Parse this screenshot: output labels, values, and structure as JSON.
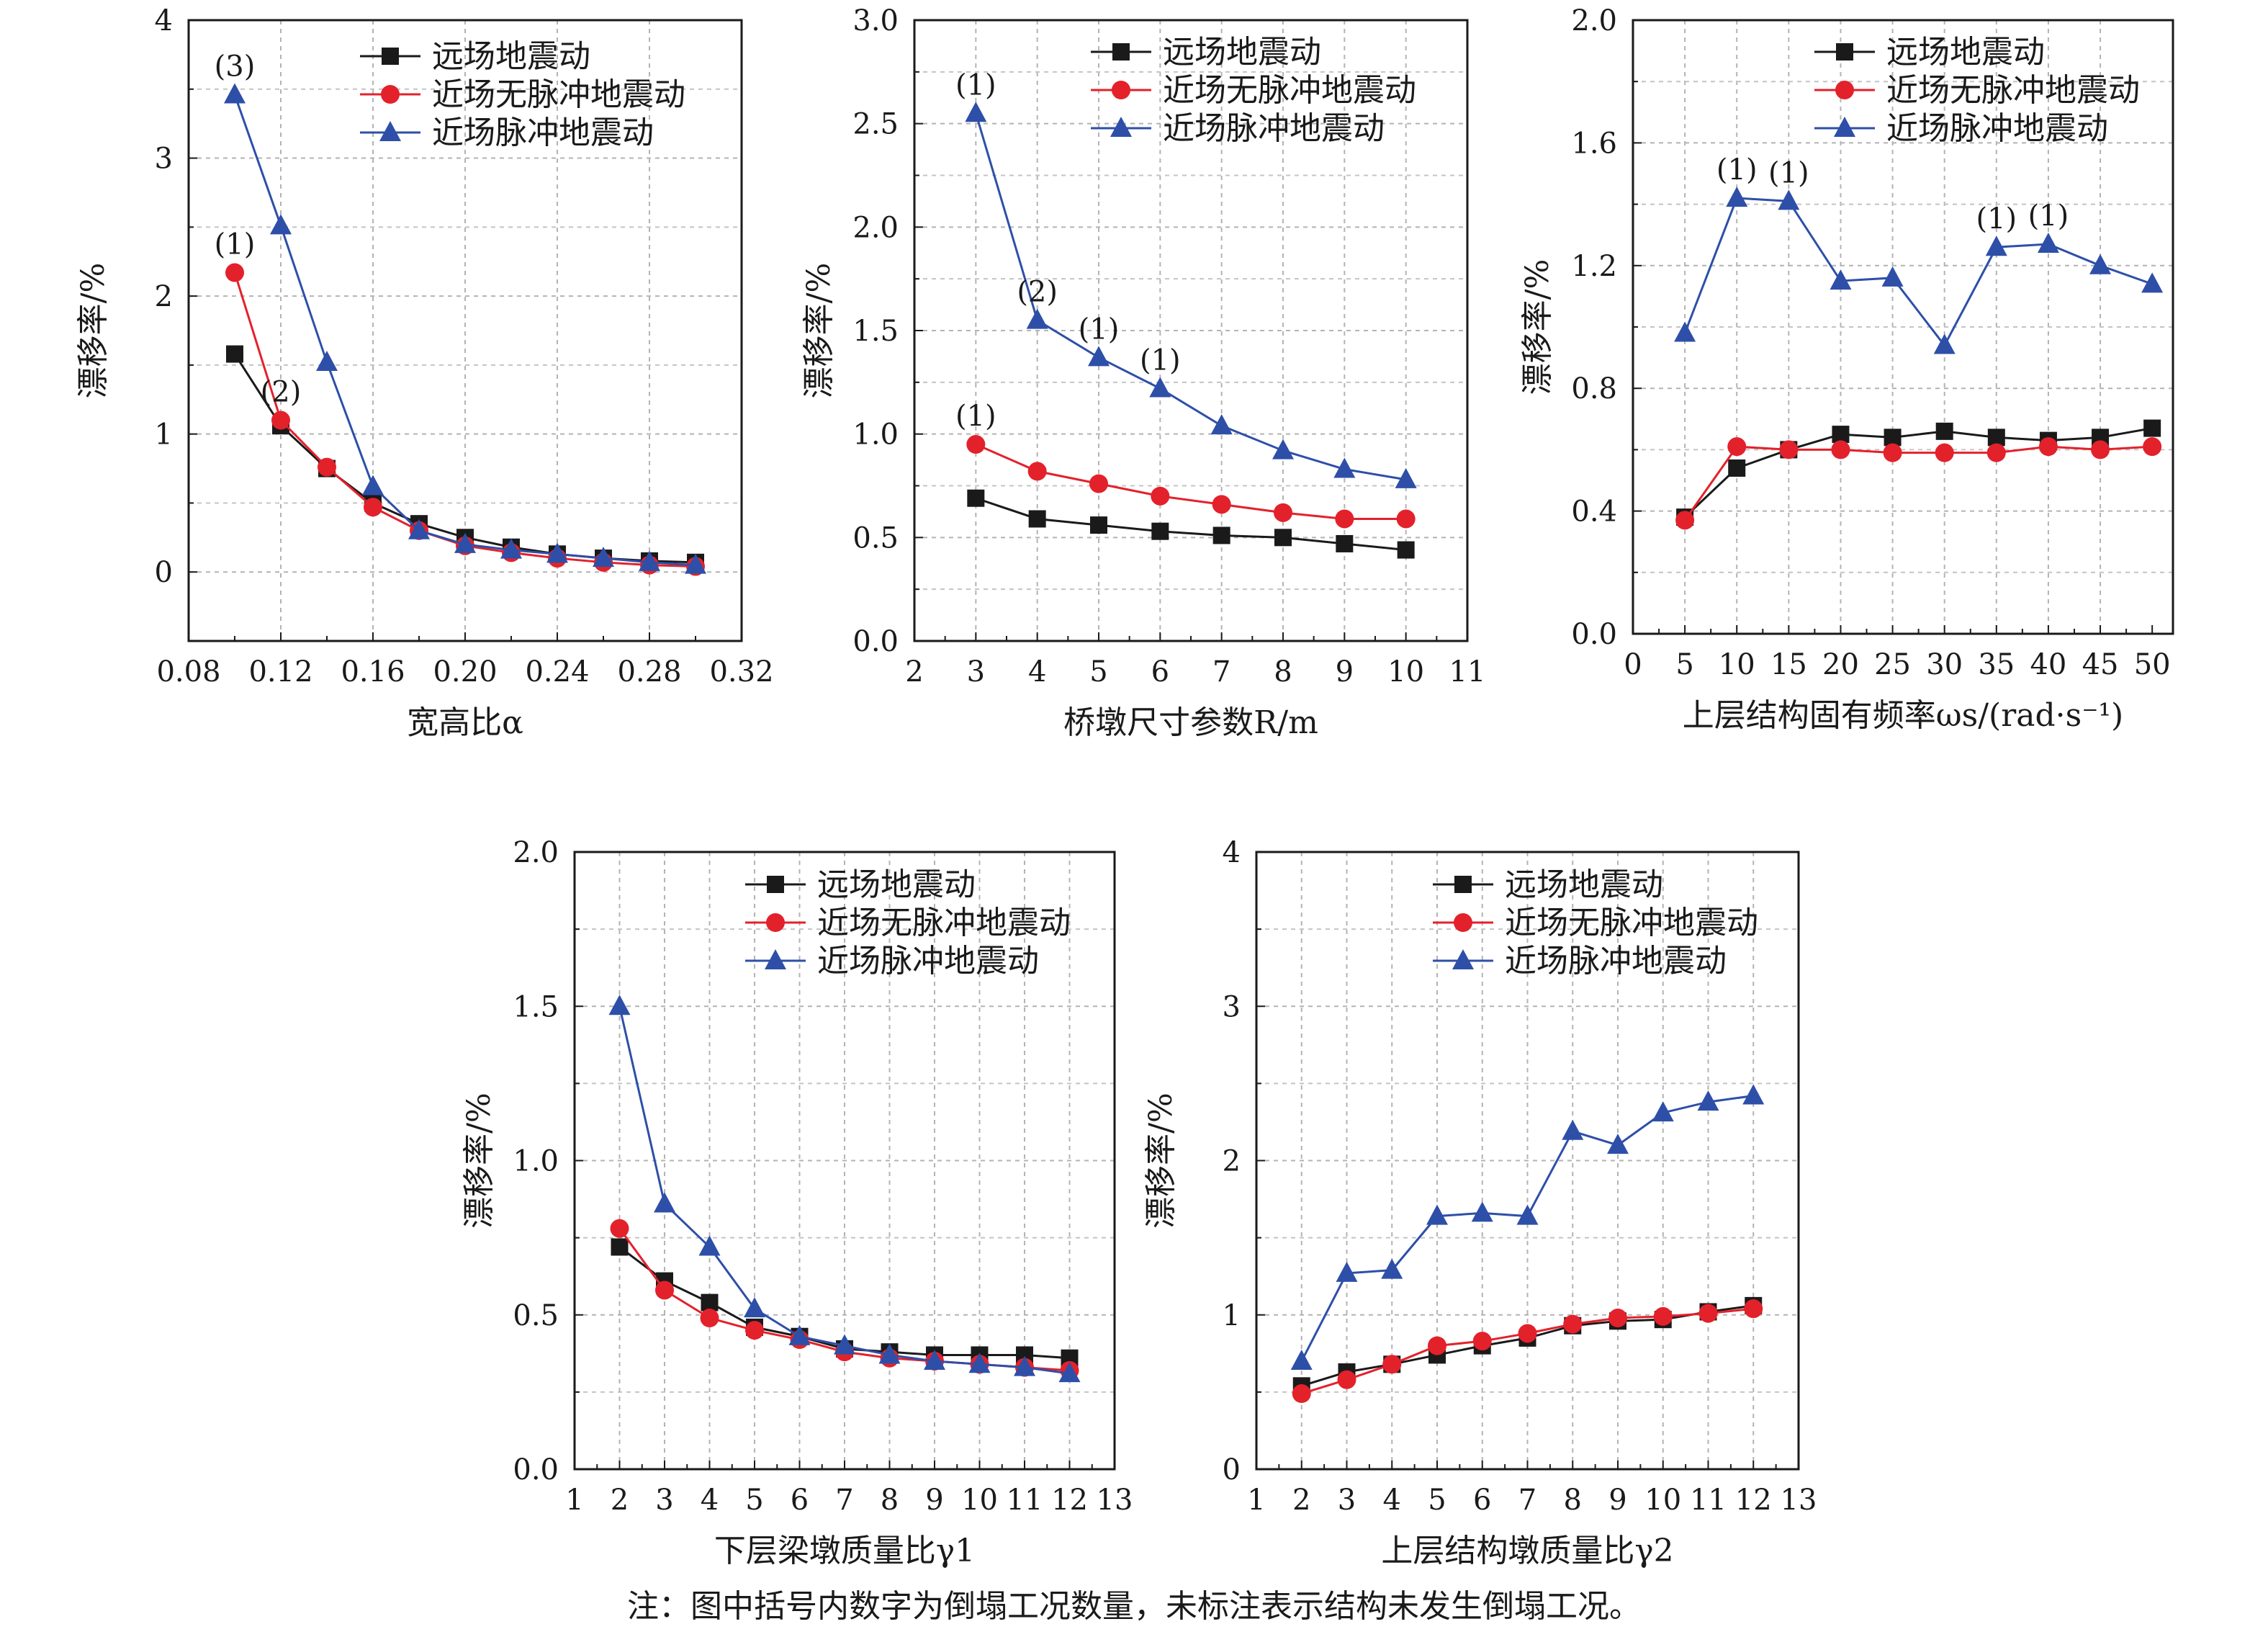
{
  "figure": {
    "note": "注：图中括号内数字为倒塌工况数量，未标注表示结构未发生倒塌工况。",
    "series_styles": [
      {
        "color": "#1a1a1a",
        "marker": "square"
      },
      {
        "color": "#e3212b",
        "marker": "circle"
      },
      {
        "color": "#2e4fa8",
        "marker": "triangle"
      }
    ]
  },
  "chart_data": [
    {
      "type": "line",
      "xlabel": "宽高比α",
      "ylabel": "漂移率/%",
      "xlim": [
        0.08,
        0.32
      ],
      "ylim": [
        -0.5,
        4
      ],
      "xticks": [
        "0.08",
        "0.12",
        "0.16",
        "0.20",
        "0.24",
        "0.28",
        "0.32"
      ],
      "yticks": [
        "0",
        "1",
        "2",
        "3",
        "4"
      ],
      "legend": "top-right",
      "grid": true,
      "x": [
        0.1,
        0.12,
        0.14,
        0.16,
        0.18,
        0.2,
        0.22,
        0.24,
        0.26,
        0.28,
        0.3
      ],
      "series": [
        {
          "name": "远场地震动",
          "values": [
            1.58,
            1.06,
            0.75,
            0.5,
            0.35,
            0.25,
            0.18,
            0.13,
            0.1,
            0.08,
            0.07
          ]
        },
        {
          "name": "近场无脉冲地震动",
          "values": [
            2.17,
            1.1,
            0.76,
            0.47,
            0.3,
            0.19,
            0.14,
            0.1,
            0.07,
            0.05,
            0.04
          ]
        },
        {
          "name": "近场脉冲地震动",
          "values": [
            3.46,
            2.51,
            1.52,
            0.62,
            0.3,
            0.2,
            0.16,
            0.13,
            0.1,
            0.07,
            0.05
          ]
        }
      ],
      "annotations": [
        {
          "text": "(3)",
          "x": 0.1,
          "y": 3.46
        },
        {
          "text": "(1)",
          "x": 0.1,
          "y": 2.17
        },
        {
          "text": "(2)",
          "x": 0.12,
          "y": 1.1
        }
      ]
    },
    {
      "type": "line",
      "xlabel": "桥墩尺寸参数R/m",
      "ylabel": "漂移率/%",
      "xlim": [
        2,
        11
      ],
      "ylim": [
        0,
        3
      ],
      "xticks": [
        "2",
        "3",
        "4",
        "5",
        "6",
        "7",
        "8",
        "9",
        "10",
        "11"
      ],
      "yticks": [
        "0.0",
        "0.5",
        "1.0",
        "1.5",
        "2.0",
        "2.5",
        "3.0"
      ],
      "legend": "top-right",
      "grid": true,
      "x": [
        3,
        4,
        5,
        6,
        7,
        8,
        9,
        10
      ],
      "series": [
        {
          "name": "远场地震动",
          "values": [
            0.69,
            0.59,
            0.56,
            0.53,
            0.51,
            0.5,
            0.47,
            0.44
          ]
        },
        {
          "name": "近场无脉冲地震动",
          "values": [
            0.95,
            0.82,
            0.76,
            0.7,
            0.66,
            0.62,
            0.59,
            0.59
          ]
        },
        {
          "name": "近场脉冲地震动",
          "values": [
            2.55,
            1.55,
            1.37,
            1.22,
            1.04,
            0.92,
            0.83,
            0.78
          ]
        }
      ],
      "annotations": [
        {
          "text": "(1)",
          "x": 3,
          "y": 2.55
        },
        {
          "text": "(2)",
          "x": 4,
          "y": 1.55
        },
        {
          "text": "(1)",
          "x": 5,
          "y": 1.37
        },
        {
          "text": "(1)",
          "x": 6,
          "y": 1.22
        },
        {
          "text": "(1)",
          "x": 3,
          "y": 0.95
        }
      ]
    },
    {
      "type": "line",
      "xlabel": "上层结构固有频率ωs/(rad·s⁻¹)",
      "ylabel": "漂移率/%",
      "xlim": [
        0,
        52
      ],
      "ylim": [
        0,
        2
      ],
      "xticks": [
        "0",
        "5",
        "10",
        "15",
        "20",
        "25",
        "30",
        "35",
        "40",
        "45",
        "50"
      ],
      "yticks": [
        "0.0",
        "0.4",
        "0.8",
        "1.2",
        "1.6",
        "2.0"
      ],
      "legend": "top-right",
      "grid": true,
      "x": [
        5,
        10,
        15,
        20,
        25,
        30,
        35,
        40,
        45,
        50
      ],
      "series": [
        {
          "name": "远场地震动",
          "values": [
            0.38,
            0.54,
            0.6,
            0.65,
            0.64,
            0.66,
            0.64,
            0.63,
            0.64,
            0.67
          ]
        },
        {
          "name": "近场无脉冲地震动",
          "values": [
            0.37,
            0.61,
            0.6,
            0.6,
            0.59,
            0.59,
            0.59,
            0.61,
            0.6,
            0.61
          ]
        },
        {
          "name": "近场脉冲地震动",
          "values": [
            0.98,
            1.42,
            1.41,
            1.15,
            1.16,
            0.94,
            1.26,
            1.27,
            1.2,
            1.14
          ]
        }
      ],
      "annotations": [
        {
          "text": "(1)",
          "x": 10,
          "y": 1.42
        },
        {
          "text": "(1)",
          "x": 15,
          "y": 1.41
        },
        {
          "text": "(1)",
          "x": 35,
          "y": 1.26
        },
        {
          "text": "(1)",
          "x": 40,
          "y": 1.27
        }
      ]
    },
    {
      "type": "line",
      "xlabel": "下层梁墩质量比γ1",
      "ylabel": "漂移率/%",
      "xlim": [
        1,
        13
      ],
      "ylim": [
        0,
        2
      ],
      "xticks": [
        "1",
        "2",
        "3",
        "4",
        "5",
        "6",
        "7",
        "8",
        "9",
        "10",
        "11",
        "12",
        "13"
      ],
      "yticks": [
        "0.0",
        "0.5",
        "1.0",
        "1.5",
        "2.0"
      ],
      "legend": "top-right",
      "grid": true,
      "x": [
        2,
        3,
        4,
        5,
        6,
        7,
        8,
        9,
        10,
        11,
        12
      ],
      "series": [
        {
          "name": "远场地震动",
          "values": [
            0.72,
            0.61,
            0.54,
            0.46,
            0.43,
            0.39,
            0.38,
            0.37,
            0.37,
            0.37,
            0.36
          ]
        },
        {
          "name": "近场无脉冲地震动",
          "values": [
            0.78,
            0.58,
            0.49,
            0.45,
            0.42,
            0.38,
            0.36,
            0.35,
            0.34,
            0.33,
            0.32
          ]
        },
        {
          "name": "近场脉冲地震动",
          "values": [
            1.5,
            0.86,
            0.72,
            0.52,
            0.43,
            0.4,
            0.37,
            0.35,
            0.34,
            0.33,
            0.31
          ]
        }
      ],
      "annotations": []
    },
    {
      "type": "line",
      "xlabel": "上层结构墩质量比γ2",
      "ylabel": "漂移率/%",
      "xlim": [
        1,
        13
      ],
      "ylim": [
        0,
        4
      ],
      "xticks": [
        "1",
        "2",
        "3",
        "4",
        "5",
        "6",
        "7",
        "8",
        "9",
        "10",
        "11",
        "12",
        "13"
      ],
      "yticks": [
        "0",
        "1",
        "2",
        "3",
        "4"
      ],
      "legend": "top-right",
      "grid": true,
      "x": [
        2,
        3,
        4,
        5,
        6,
        7,
        8,
        9,
        10,
        11,
        12
      ],
      "series": [
        {
          "name": "远场地震动",
          "values": [
            0.54,
            0.63,
            0.68,
            0.74,
            0.8,
            0.85,
            0.93,
            0.96,
            0.97,
            1.02,
            1.06
          ]
        },
        {
          "name": "近场无脉冲地震动",
          "values": [
            0.49,
            0.58,
            0.68,
            0.8,
            0.83,
            0.88,
            0.94,
            0.98,
            0.99,
            1.01,
            1.04
          ]
        },
        {
          "name": "近场脉冲地震动",
          "values": [
            0.7,
            1.27,
            1.29,
            1.64,
            1.66,
            1.64,
            2.19,
            2.1,
            2.31,
            2.38,
            2.42
          ]
        }
      ],
      "annotations": []
    }
  ]
}
